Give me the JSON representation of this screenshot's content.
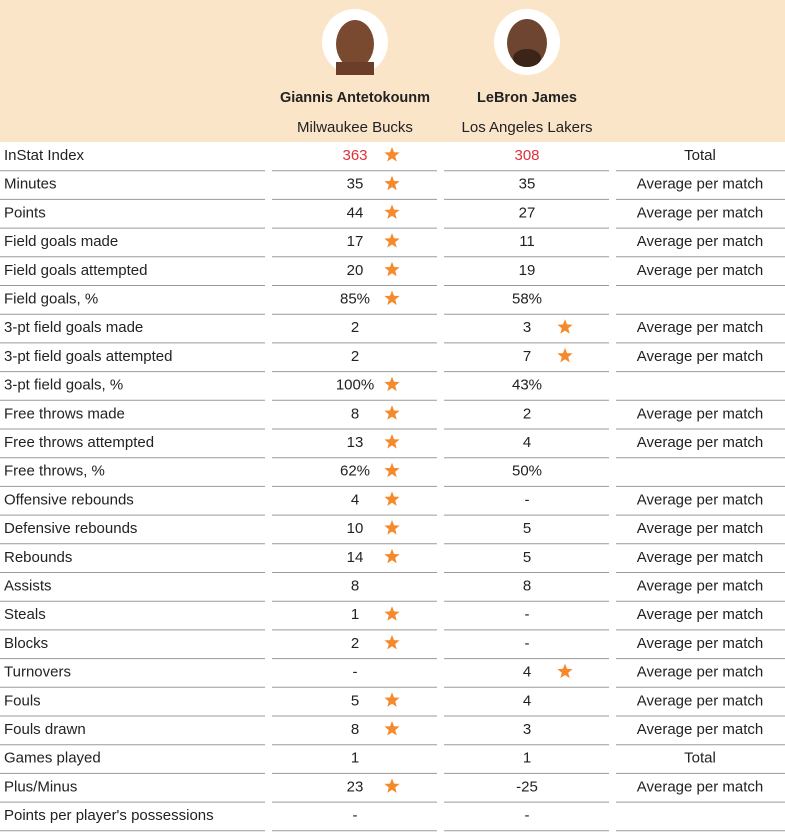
{
  "header": {
    "players": [
      {
        "name": "Giannis Antetokounm",
        "team": "Milwaukee Bucks"
      },
      {
        "name": "LeBron James",
        "team": "Los Angeles Lakers"
      }
    ]
  },
  "table": {
    "rows": [
      {
        "label": "InStat Index",
        "values": [
          {
            "text": "363",
            "star": true
          },
          {
            "text": "308",
            "star": false
          }
        ],
        "note": "Total"
      },
      {
        "label": "Minutes",
        "values": [
          {
            "text": "35",
            "star": true
          },
          {
            "text": "35",
            "star": false
          }
        ],
        "note": "Average per match"
      },
      {
        "label": "Points",
        "values": [
          {
            "text": "44",
            "star": true
          },
          {
            "text": "27",
            "star": false
          }
        ],
        "note": "Average per match"
      },
      {
        "label": "Field goals made",
        "values": [
          {
            "text": "17",
            "star": true
          },
          {
            "text": "11",
            "star": false
          }
        ],
        "note": "Average per match"
      },
      {
        "label": "Field goals attempted",
        "values": [
          {
            "text": "20",
            "star": true
          },
          {
            "text": "19",
            "star": false
          }
        ],
        "note": "Average per match"
      },
      {
        "label": "Field goals, %",
        "values": [
          {
            "text": "85%",
            "star": true
          },
          {
            "text": "58%",
            "star": false
          }
        ]
      },
      {
        "label": "3-pt field goals made",
        "values": [
          {
            "text": "2",
            "star": false
          },
          {
            "text": "3",
            "star": true
          }
        ],
        "note": "Average per match"
      },
      {
        "label": "3-pt field goals attempted",
        "values": [
          {
            "text": "2",
            "star": false
          },
          {
            "text": "7",
            "star": true
          }
        ],
        "note": "Average per match"
      },
      {
        "label": "3-pt field goals, %",
        "values": [
          {
            "text": "100%",
            "star": true
          },
          {
            "text": "43%",
            "star": false
          }
        ]
      },
      {
        "label": "Free throws made",
        "values": [
          {
            "text": "8",
            "star": true
          },
          {
            "text": "2",
            "star": false
          }
        ],
        "note": "Average per match"
      },
      {
        "label": "Free throws attempted",
        "values": [
          {
            "text": "13",
            "star": true
          },
          {
            "text": "4",
            "star": false
          }
        ],
        "note": "Average per match"
      },
      {
        "label": "Free throws, %",
        "values": [
          {
            "text": "62%",
            "star": true
          },
          {
            "text": "50%",
            "star": false
          }
        ]
      },
      {
        "label": "Offensive rebounds",
        "values": [
          {
            "text": "4",
            "star": true
          },
          {
            "text": "-",
            "star": false
          }
        ],
        "note": "Average per match"
      },
      {
        "label": "Defensive rebounds",
        "values": [
          {
            "text": "10",
            "star": true
          },
          {
            "text": "5",
            "star": false
          }
        ],
        "note": "Average per match"
      },
      {
        "label": "Rebounds",
        "values": [
          {
            "text": "14",
            "star": true
          },
          {
            "text": "5",
            "star": false
          }
        ],
        "note": "Average per match"
      },
      {
        "label": "Assists",
        "values": [
          {
            "text": "8",
            "star": false
          },
          {
            "text": "8",
            "star": false
          }
        ],
        "note": "Average per match"
      },
      {
        "label": "Steals",
        "values": [
          {
            "text": "1",
            "star": true
          },
          {
            "text": "-",
            "star": false
          }
        ],
        "note": "Average per match"
      },
      {
        "label": "Blocks",
        "values": [
          {
            "text": "2",
            "star": true
          },
          {
            "text": "-",
            "star": false
          }
        ],
        "note": "Average per match"
      },
      {
        "label": "Turnovers",
        "values": [
          {
            "text": "-",
            "star": false
          },
          {
            "text": "4",
            "star": true
          }
        ],
        "note": "Average per match"
      },
      {
        "label": "Fouls",
        "values": [
          {
            "text": "5",
            "star": true
          },
          {
            "text": "4",
            "star": false
          }
        ],
        "note": "Average per match"
      },
      {
        "label": "Fouls drawn",
        "values": [
          {
            "text": "8",
            "star": true
          },
          {
            "text": "3",
            "star": false
          }
        ],
        "note": "Average per match"
      },
      {
        "label": "Games played",
        "values": [
          {
            "text": "1",
            "star": false
          },
          {
            "text": "1",
            "star": false
          }
        ],
        "note": "Total"
      },
      {
        "label": "Plus/Minus",
        "values": [
          {
            "text": "23",
            "star": true
          },
          {
            "text": "-25",
            "star": false
          }
        ],
        "note": "Average per match"
      },
      {
        "label": "Points per player's possessions",
        "values": [
          {
            "text": "-",
            "star": false
          },
          {
            "text": "-",
            "star": false
          }
        ]
      }
    ]
  }
}
